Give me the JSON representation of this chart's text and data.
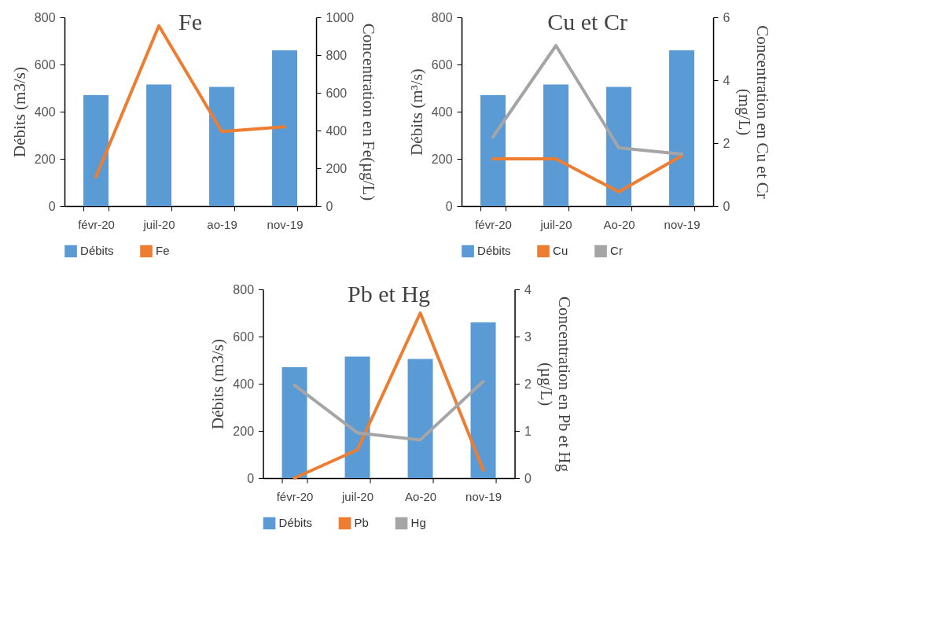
{
  "chart_data": [
    {
      "type": "bar",
      "title": "Fe",
      "categories": [
        "févr-20",
        "juil-20",
        "ao-19",
        "nov-19"
      ],
      "ylabel": "Débits (m3/s)",
      "y2label": "Concentration en Fe(µg/L)",
      "ylim": [
        0,
        800
      ],
      "yticks": [
        0,
        200,
        400,
        600,
        800
      ],
      "y2lim": [
        0,
        1000
      ],
      "y2ticks": [
        0,
        200,
        400,
        600,
        800,
        1000
      ],
      "legend": "bottom",
      "series": [
        {
          "name": "Débits",
          "color": "#5b9bd5",
          "values": [
            470,
            515,
            505,
            660
          ]
        },
        {
          "name": "Fe",
          "type": "line",
          "axis": "y2",
          "color": "#ed7d31",
          "values": [
            155,
            955,
            395,
            420
          ]
        }
      ]
    },
    {
      "type": "bar",
      "title": "Cu et Cr",
      "categories": [
        "févr-20",
        "juil-20",
        "Ao-20",
        "nov-19"
      ],
      "ylabel": "Débits (m³/s)",
      "y2label": "Concentration en Cu et Cr\n(mg/L)",
      "ylim": [
        0,
        800
      ],
      "yticks": [
        0,
        200,
        400,
        600,
        800
      ],
      "y2lim": [
        0,
        6
      ],
      "y2ticks": [
        0,
        2,
        4,
        6
      ],
      "legend": "bottom",
      "series": [
        {
          "name": "Débits",
          "color": "#5b9bd5",
          "values": [
            470,
            515,
            505,
            660
          ]
        },
        {
          "name": "Cu",
          "type": "line",
          "axis": "y2",
          "color": "#ed7d31",
          "values": [
            1.5,
            1.5,
            0.45,
            1.6
          ]
        },
        {
          "name": "Cr",
          "type": "line",
          "axis": "y2",
          "color": "#a5a5a5",
          "values": [
            2.2,
            5.1,
            1.85,
            1.65
          ]
        }
      ]
    },
    {
      "type": "bar",
      "title": "Pb et Hg",
      "categories": [
        "févr-20",
        "juil-20",
        "Ao-20",
        "nov-19"
      ],
      "ylabel": "Débits (m3/s)",
      "y2label": "Concentration en Pb et Hg\n(µg/L)",
      "ylim": [
        0,
        800
      ],
      "yticks": [
        0,
        200,
        400,
        600,
        800
      ],
      "y2lim": [
        0,
        4
      ],
      "y2ticks": [
        0,
        1,
        2,
        3,
        4
      ],
      "legend": "bottom",
      "series": [
        {
          "name": "Débits",
          "color": "#5b9bd5",
          "values": [
            470,
            515,
            505,
            660
          ]
        },
        {
          "name": "Pb",
          "type": "line",
          "axis": "y2",
          "color": "#ed7d31",
          "values": [
            0,
            0.6,
            3.5,
            0.17
          ]
        },
        {
          "name": "Hg",
          "type": "line",
          "axis": "y2",
          "color": "#a5a5a5",
          "values": [
            1.97,
            0.96,
            0.81,
            2.05
          ]
        }
      ]
    }
  ]
}
